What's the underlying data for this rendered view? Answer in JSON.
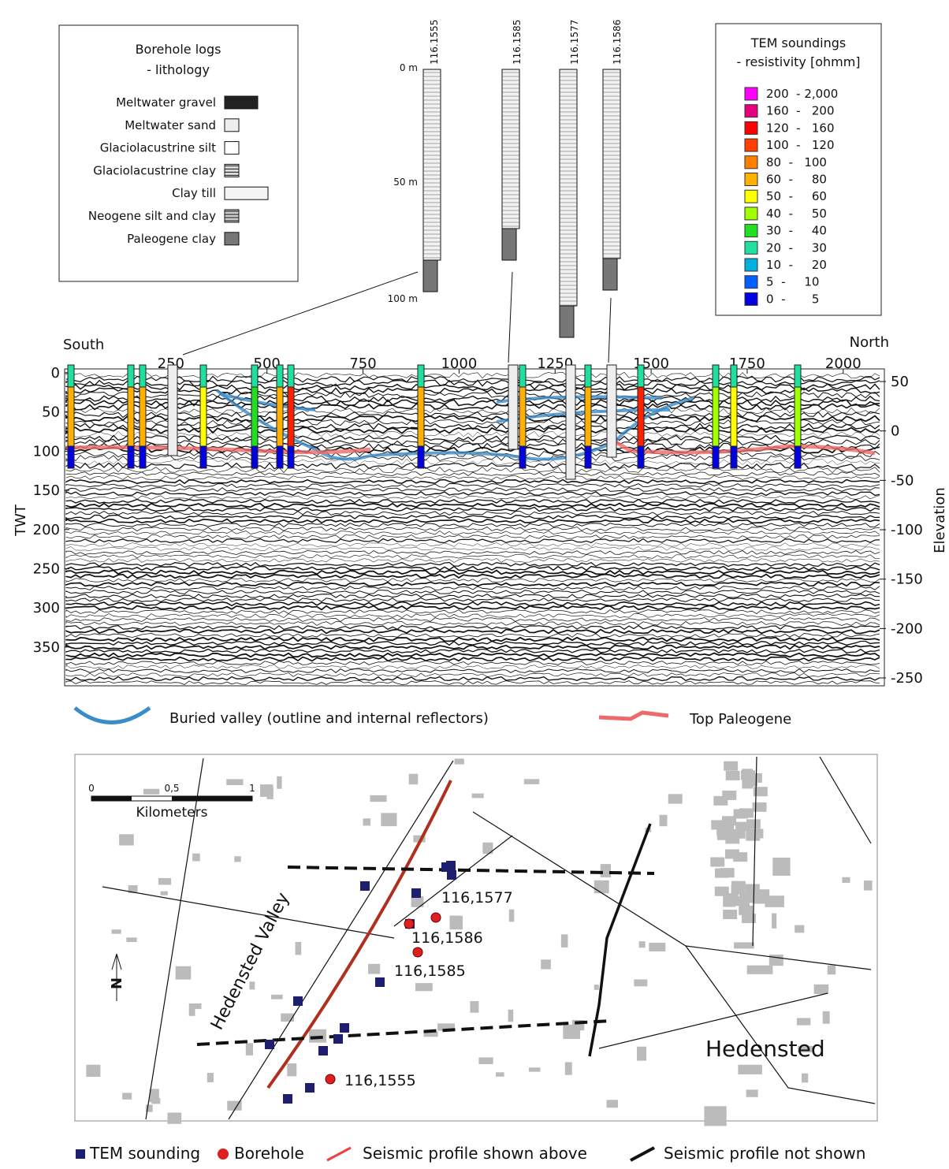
{
  "borehole_legend": {
    "title": "Borehole logs",
    "subtitle": "- lithology",
    "items": [
      "Meltwater gravel",
      "Meltwater sand",
      "Glaciolacustrine silt",
      "Glaciolacustrine clay",
      "Clay till",
      "Neogene silt and clay",
      "Paleogene clay"
    ]
  },
  "tem_legend": {
    "title": "TEM soundings",
    "subtitle": "- resistivity [ohmm]",
    "items": [
      {
        "label": "200  - 2,000",
        "color": "#ff00ff"
      },
      {
        "label": "160  -   200",
        "color": "#e6007e"
      },
      {
        "label": "120  -   160",
        "color": "#ff0000"
      },
      {
        "label": "100  -   120",
        "color": "#ff4000"
      },
      {
        "label": "80  -   100",
        "color": "#ff8000"
      },
      {
        "label": "60  -     80",
        "color": "#ffb000"
      },
      {
        "label": "50  -     60",
        "color": "#ffff00"
      },
      {
        "label": "40  -     50",
        "color": "#a0ff00"
      },
      {
        "label": "30  -     40",
        "color": "#20e020"
      },
      {
        "label": "20  -     30",
        "color": "#20e0a0"
      },
      {
        "label": "10  -     20",
        "color": "#00b0e0"
      },
      {
        "label": "5  -     10",
        "color": "#0060ff"
      },
      {
        "label": "0  -       5",
        "color": "#0000e0"
      }
    ]
  },
  "borehole_logs": {
    "names": [
      "116.1555",
      "116.1585",
      "116.1577",
      "116.1586"
    ],
    "depths": [
      "0 m",
      "50 m",
      "100 m"
    ]
  },
  "section": {
    "left": "South",
    "right": "North",
    "x_ticks": [
      250,
      500,
      750,
      1000,
      1250,
      1500,
      1750,
      2000
    ],
    "y_label": "TWT",
    "y_ticks": [
      0,
      50,
      100,
      150,
      200,
      250,
      300,
      350
    ],
    "y2_label": "Elevation",
    "y2_ticks": [
      50,
      0,
      -50,
      -100,
      -150,
      -200,
      -250
    ]
  },
  "section_legend": [
    "Buried valley (outline and internal reflectors)",
    "Top Paleogene"
  ],
  "map": {
    "scale": [
      "0",
      "0,5",
      "1"
    ],
    "scale_unit": "Kilometers",
    "valley": "Hedensted Valley",
    "town": "Hedensted",
    "north": "N",
    "boreholes": [
      "116,1577",
      "116,1586",
      "116,1585",
      "116,1555"
    ]
  },
  "map_legend": [
    "TEM sounding",
    "Borehole",
    "Seismic profile shown above",
    "Seismic profile not shown"
  ]
}
